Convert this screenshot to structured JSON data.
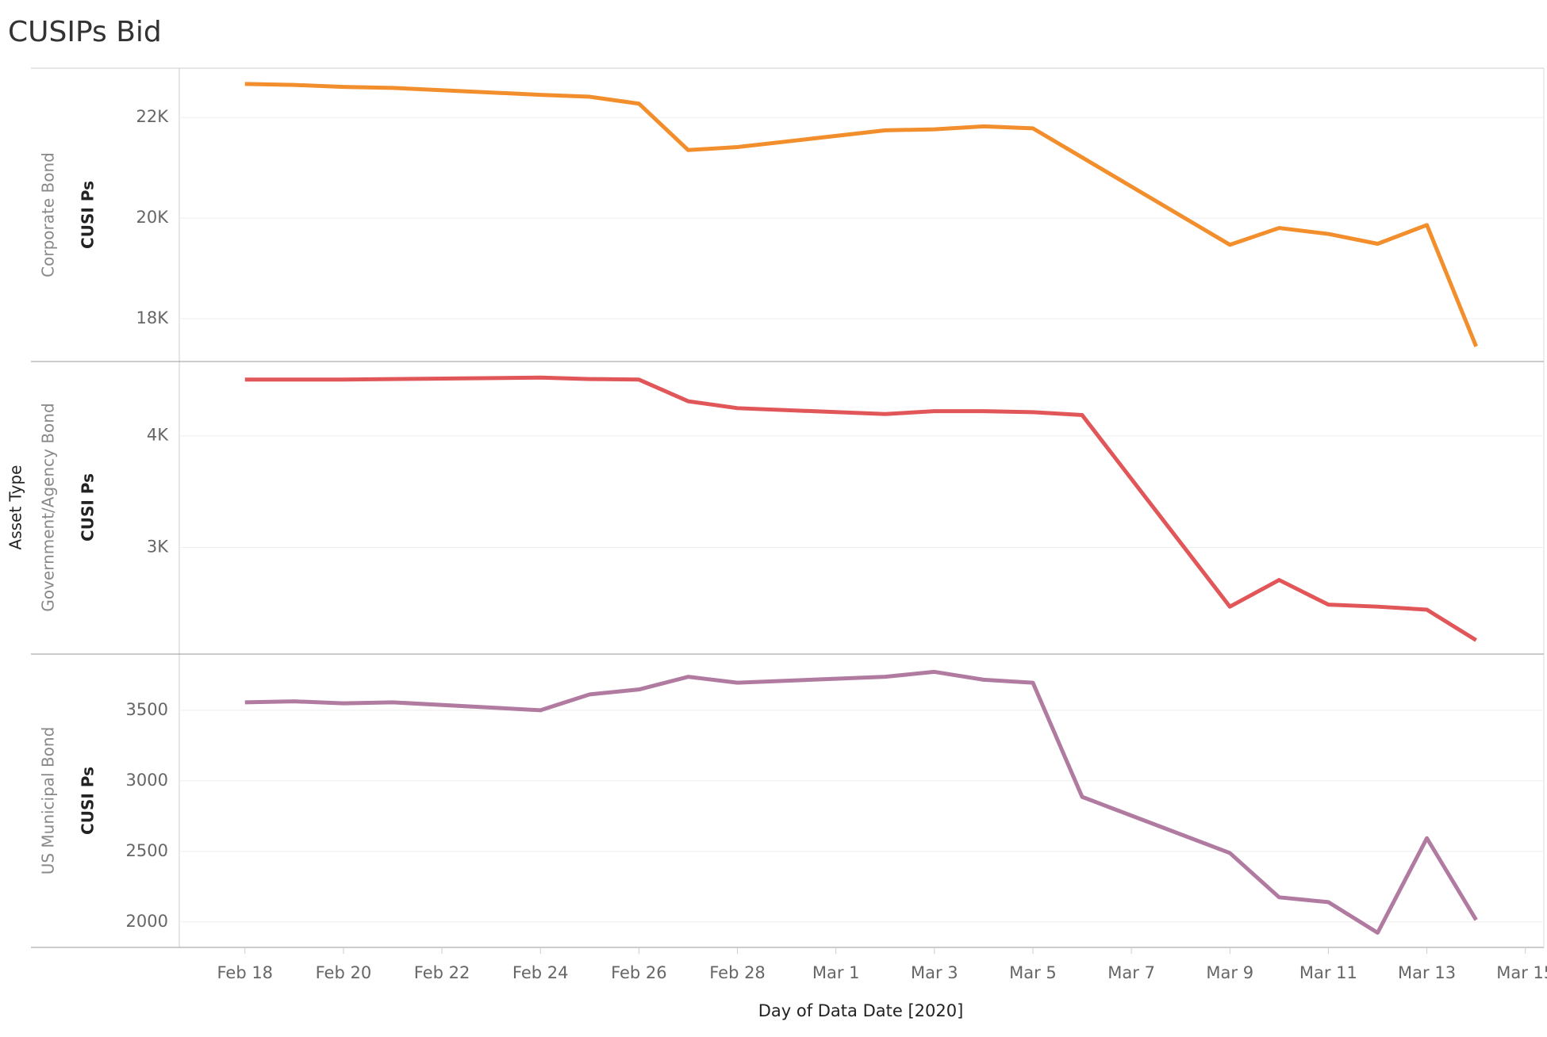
{
  "chart_data": {
    "type": "line",
    "title": "CUSIPs Bid",
    "facet_label": "Asset Type",
    "x_label": "Day of Data Date [2020]",
    "x": [
      "2020-02-18",
      "2020-02-19",
      "2020-02-20",
      "2020-02-21",
      "2020-02-24",
      "2020-02-25",
      "2020-02-26",
      "2020-02-27",
      "2020-02-28",
      "2020-03-02",
      "2020-03-03",
      "2020-03-04",
      "2020-03-05",
      "2020-03-06",
      "2020-03-09",
      "2020-03-10",
      "2020-03-11",
      "2020-03-12",
      "2020-03-13",
      "2020-03-14"
    ],
    "xlim": [
      "2020-02-16T16:00:00Z",
      "2020-03-15T09:00:00Z"
    ],
    "xticks": [
      {
        "value": "2020-02-18",
        "label": "Feb 18"
      },
      {
        "value": "2020-02-20",
        "label": "Feb 20"
      },
      {
        "value": "2020-02-22",
        "label": "Feb 22"
      },
      {
        "value": "2020-02-24",
        "label": "Feb 24"
      },
      {
        "value": "2020-02-26",
        "label": "Feb 26"
      },
      {
        "value": "2020-02-28",
        "label": "Feb 28"
      },
      {
        "value": "2020-03-01",
        "label": "Mar 1"
      },
      {
        "value": "2020-03-03",
        "label": "Mar 3"
      },
      {
        "value": "2020-03-05",
        "label": "Mar 5"
      },
      {
        "value": "2020-03-07",
        "label": "Mar 7"
      },
      {
        "value": "2020-03-09",
        "label": "Mar 9"
      },
      {
        "value": "2020-03-11",
        "label": "Mar 11"
      },
      {
        "value": "2020-03-13",
        "label": "Mar 13"
      },
      {
        "value": "2020-03-15",
        "label": "Mar 15"
      }
    ],
    "grid": true,
    "series": [
      {
        "name": "Corporate Bond",
        "y_label": "CUSI Ps",
        "color": "#f28e2b",
        "ylim": [
          17150,
          22980
        ],
        "yticks": [
          {
            "value": 18000,
            "label": "18K"
          },
          {
            "value": 20000,
            "label": "20K"
          },
          {
            "value": 22000,
            "label": "22K"
          }
        ],
        "values": [
          22667,
          22647,
          22608,
          22588,
          22451,
          22412,
          22275,
          21353,
          21412,
          21745,
          21765,
          21824,
          21784,
          21206,
          19471,
          19804,
          19686,
          19490,
          19863,
          17451
        ]
      },
      {
        "name": "Government/Agency Bond",
        "y_label": "CUSI Ps",
        "color": "#e15759",
        "ylim": [
          2044,
          4673
        ],
        "yticks": [
          {
            "value": 3000,
            "label": "3K"
          },
          {
            "value": 4000,
            "label": "4K"
          }
        ],
        "values": [
          4504,
          4504,
          4504,
          4509,
          4522,
          4509,
          4504,
          4310,
          4248,
          4195,
          4221,
          4221,
          4212,
          4186,
          2469,
          2708,
          2487,
          2469,
          2442,
          2168
        ]
      },
      {
        "name": "US Municipal Bond",
        "y_label": "CUSI Ps",
        "color": "#b07aa1",
        "ylim": [
          1819,
          3898
        ],
        "yticks": [
          2000,
          2500,
          3000,
          3500
        ],
        "values": [
          3556,
          3563,
          3549,
          3556,
          3500,
          3612,
          3647,
          3737,
          3695,
          3737,
          3772,
          3716,
          3695,
          2886,
          2488,
          2174,
          2140,
          1923,
          2593,
          2014
        ]
      }
    ]
  }
}
